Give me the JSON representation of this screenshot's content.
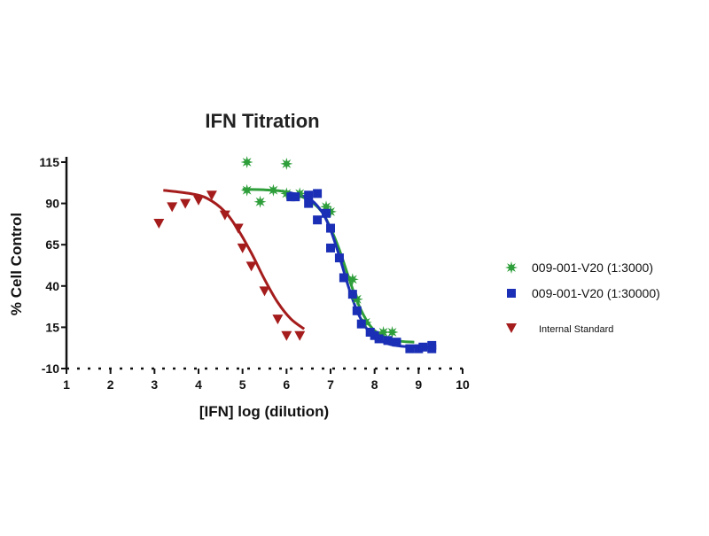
{
  "chart_data": {
    "type": "scatter",
    "title": "IFN Titration",
    "xlabel": "[IFN] log (dilution)",
    "ylabel": "% Cell Control",
    "xlim": [
      1,
      10
    ],
    "ylim": [
      -10,
      115
    ],
    "xticks": [
      1,
      2,
      3,
      4,
      5,
      6,
      7,
      8,
      9,
      10
    ],
    "yticks": [
      -10,
      15,
      40,
      65,
      90,
      115
    ],
    "xticklabels": [
      "1",
      "2",
      "3",
      "4",
      "5",
      "6",
      "7",
      "8",
      "9",
      "10"
    ],
    "yticklabels": [
      "-10",
      "15",
      "40",
      "65",
      "90",
      "115"
    ],
    "legend_position": "right",
    "series": [
      {
        "name": "009-001-V20 (1:3000)",
        "marker": "star",
        "color": "#2e9e3a",
        "points": [
          [
            5.1,
            115
          ],
          [
            6.0,
            114
          ],
          [
            5.1,
            98
          ],
          [
            5.4,
            91
          ],
          [
            5.7,
            98
          ],
          [
            6.0,
            96
          ],
          [
            6.3,
            96
          ],
          [
            6.9,
            88
          ],
          [
            7.0,
            85
          ],
          [
            7.5,
            44
          ],
          [
            7.6,
            32
          ],
          [
            7.8,
            18
          ],
          [
            8.2,
            12
          ],
          [
            8.4,
            12
          ]
        ],
        "curve": [
          [
            5.0,
            98.5
          ],
          [
            5.5,
            98.2
          ],
          [
            6.0,
            97
          ],
          [
            6.5,
            92
          ],
          [
            6.8,
            85
          ],
          [
            7.0,
            75
          ],
          [
            7.2,
            62
          ],
          [
            7.4,
            46
          ],
          [
            7.6,
            31
          ],
          [
            7.8,
            20
          ],
          [
            8.0,
            13
          ],
          [
            8.3,
            8.5
          ],
          [
            8.6,
            6.5
          ],
          [
            8.9,
            6
          ]
        ]
      },
      {
        "name": "009-001-V20 (1:30000)",
        "marker": "square",
        "color": "#1a2fb5",
        "points": [
          [
            6.1,
            94
          ],
          [
            6.2,
            94
          ],
          [
            6.5,
            95
          ],
          [
            6.7,
            96
          ],
          [
            6.5,
            90
          ],
          [
            6.9,
            84
          ],
          [
            6.7,
            80
          ],
          [
            7.0,
            75
          ],
          [
            7.0,
            63
          ],
          [
            7.2,
            57
          ],
          [
            7.3,
            45
          ],
          [
            7.5,
            35
          ],
          [
            7.6,
            25
          ],
          [
            7.7,
            17
          ],
          [
            7.9,
            12
          ],
          [
            8.0,
            10
          ],
          [
            8.1,
            8
          ],
          [
            8.3,
            7
          ],
          [
            8.5,
            6
          ],
          [
            8.8,
            2
          ],
          [
            9.0,
            2
          ],
          [
            9.1,
            3
          ],
          [
            9.3,
            4
          ],
          [
            9.3,
            2
          ]
        ],
        "curve": [
          [
            6.0,
            97
          ],
          [
            6.5,
            93
          ],
          [
            6.8,
            85
          ],
          [
            7.0,
            74
          ],
          [
            7.2,
            58
          ],
          [
            7.4,
            40
          ],
          [
            7.6,
            25
          ],
          [
            7.8,
            15
          ],
          [
            8.0,
            9
          ],
          [
            8.3,
            5
          ],
          [
            8.6,
            3.5
          ],
          [
            9.0,
            3
          ],
          [
            9.3,
            3
          ]
        ]
      },
      {
        "name": "Internal Standard",
        "marker": "triangle-down",
        "color": "#a51c1c",
        "points": [
          [
            3.1,
            78
          ],
          [
            3.4,
            88
          ],
          [
            3.7,
            90
          ],
          [
            4.0,
            92
          ],
          [
            4.3,
            95
          ],
          [
            4.6,
            83
          ],
          [
            4.9,
            75
          ],
          [
            5.0,
            63
          ],
          [
            5.2,
            52
          ],
          [
            5.5,
            37
          ],
          [
            5.8,
            20
          ],
          [
            6.0,
            10
          ],
          [
            6.3,
            10
          ]
        ],
        "curve": [
          [
            3.2,
            98
          ],
          [
            3.8,
            96
          ],
          [
            4.2,
            93
          ],
          [
            4.6,
            85
          ],
          [
            4.9,
            74
          ],
          [
            5.2,
            60
          ],
          [
            5.5,
            44
          ],
          [
            5.8,
            30
          ],
          [
            6.1,
            20
          ],
          [
            6.4,
            14
          ]
        ]
      }
    ]
  }
}
